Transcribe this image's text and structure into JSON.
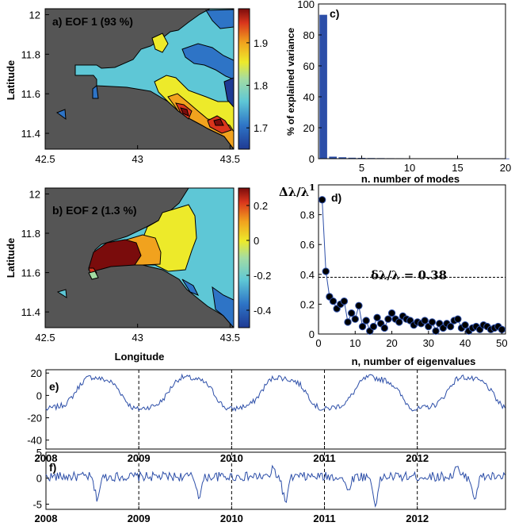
{
  "chart_data": [
    {
      "id": "a",
      "type": "heatmap",
      "title": "a) EOF 1 (93 %)",
      "ylabel": "Latitude",
      "xticks": [
        "42.5",
        "43",
        "43.5"
      ],
      "yticks": [
        "11.4",
        "11.6",
        "11.8",
        "12"
      ],
      "xlim": [
        42.5,
        43.52
      ],
      "ylim": [
        11.32,
        12.03
      ],
      "colorbar_ticks": [
        "1.7",
        "1.8",
        "1.9"
      ],
      "colorbar_range": [
        1.65,
        1.98
      ],
      "colormap": [
        "#1f3a93",
        "#2e74c6",
        "#5ec7d6",
        "#edea2a",
        "#f1a21e",
        "#d9351c",
        "#7a0c0c"
      ],
      "land_color": "#555555"
    },
    {
      "id": "b",
      "type": "heatmap",
      "title": "b) EOF 2 (1.3 %)",
      "ylabel": "Latitude",
      "xlabel": "Longitude",
      "xticks": [
        "42.5",
        "43",
        "43.5"
      ],
      "yticks": [
        "11.4",
        "11.6",
        "11.8",
        "12"
      ],
      "xlim": [
        42.5,
        43.52
      ],
      "ylim": [
        11.32,
        12.03
      ],
      "colorbar_ticks": [
        "0.2",
        "0",
        "-0.2",
        "-0.4"
      ],
      "colorbar_range": [
        -0.5,
        0.3
      ],
      "colormap": [
        "#1f3a93",
        "#2e74c6",
        "#5ec7d6",
        "#edea2a",
        "#f1a21e",
        "#d9351c",
        "#7a0c0c"
      ],
      "land_color": "#555555"
    },
    {
      "id": "c",
      "type": "bar",
      "label": "c)",
      "ylabel": "% of explained variance",
      "xlabel": "n. number of modes",
      "xlim": [
        0.5,
        20
      ],
      "ylim": [
        0,
        100
      ],
      "xticks": [
        5,
        10,
        15,
        20
      ],
      "yticks": [
        0,
        20,
        40,
        60,
        80,
        100
      ],
      "x": [
        1,
        2,
        3,
        4,
        5,
        6,
        7,
        8,
        9,
        10,
        11,
        12,
        13,
        14,
        15,
        16,
        17,
        18,
        19,
        20
      ],
      "values": [
        93,
        1.3,
        0.9,
        0.6,
        0.5,
        0.4,
        0.35,
        0.3,
        0.28,
        0.26,
        0.24,
        0.22,
        0.2,
        0.19,
        0.18,
        0.17,
        0.16,
        0.15,
        0.14,
        0.13
      ],
      "color": "#2c4ea8"
    },
    {
      "id": "d",
      "type": "line",
      "label": "d)",
      "ylabel": "Δλ/λ",
      "ylabel_sup": "1",
      "xlabel": "n, number of eigenvalues",
      "annotation": "δλ/λ = 0.38",
      "threshold": 0.38,
      "xlim": [
        0,
        51
      ],
      "ylim": [
        0,
        1
      ],
      "xticks": [
        0,
        10,
        20,
        30,
        40,
        50
      ],
      "yticks": [
        0,
        0.2,
        0.4,
        0.6,
        0.8
      ],
      "x": [
        1,
        2,
        3,
        4,
        5,
        6,
        7,
        8,
        9,
        10,
        11,
        12,
        13,
        14,
        15,
        16,
        17,
        18,
        19,
        20,
        21,
        22,
        23,
        24,
        25,
        26,
        27,
        28,
        29,
        30,
        31,
        32,
        33,
        34,
        35,
        36,
        37,
        38,
        39,
        40,
        41,
        42,
        43,
        44,
        45,
        46,
        47,
        48,
        49,
        50
      ],
      "values": [
        0.9,
        0.42,
        0.25,
        0.22,
        0.17,
        0.2,
        0.22,
        0.08,
        0.14,
        0.1,
        0.19,
        0.05,
        0.09,
        0.02,
        0.05,
        0.11,
        0.07,
        0.04,
        0.1,
        0.14,
        0.1,
        0.08,
        0.12,
        0.1,
        0.09,
        0.06,
        0.08,
        0.07,
        0.09,
        0.05,
        0.08,
        0.02,
        0.07,
        0.04,
        0.07,
        0.05,
        0.09,
        0.1,
        0.04,
        0.06,
        0.02,
        0.04,
        0.05,
        0.03,
        0.06,
        0.05,
        0.03,
        0.04,
        0.05,
        0.03
      ],
      "color": "#2c4ea8"
    },
    {
      "id": "e",
      "type": "line",
      "label": "e)",
      "xlim": [
        2008,
        2012.95
      ],
      "ylim": [
        -48,
        23
      ],
      "yticks": [
        -40,
        -20,
        0,
        20
      ],
      "xticks": [
        "2008",
        "2009",
        "2010",
        "2011",
        "2012"
      ],
      "year_lines": [
        2009,
        2010,
        2011,
        2012
      ],
      "color": "#2c4ea8"
    },
    {
      "id": "f",
      "type": "line",
      "label": "f)",
      "xlim": [
        2008,
        2012.95
      ],
      "ylim": [
        -6,
        5
      ],
      "yticks": [
        -5,
        0,
        5
      ],
      "xticks": [
        "2008",
        "2009",
        "2010",
        "2011",
        "2012"
      ],
      "year_lines": [
        2009,
        2010,
        2011,
        2012
      ],
      "color": "#2c4ea8"
    }
  ]
}
